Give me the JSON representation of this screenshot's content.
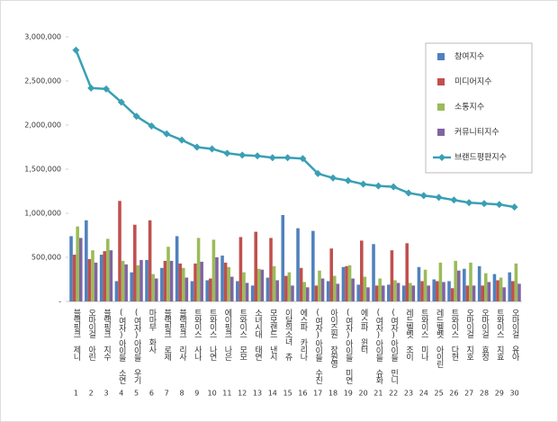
{
  "chart_data": {
    "type": "bar_line",
    "categories": [
      "블랙핑크 제니",
      "오마이걸 아린",
      "블랙핑크 지수",
      "(여자)아이들 소연",
      "(여자)아이들 우기",
      "마마무 화사",
      "블랙핑크 로제",
      "블랙핑크 리사",
      "트와이스 사나",
      "트와이스 나연",
      "에이핑크 나은",
      "트와이스 모모",
      "소녀시대 태연",
      "모모랜드 낸시",
      "이달의소녀 츄",
      "에스파 카리나",
      "(여자)아이들 수진",
      "아이즈원 장원영",
      "(여자)아이들 미연",
      "에스파 윈터",
      "(여자)아이들 슈화",
      "(여자)아이들 민니",
      "레드벨벳 조이",
      "트와이스 미나",
      "레드벨벳 아이린",
      "트와이스 다현",
      "오마이걸 지호",
      "오마이걸 효정",
      "트와이스 지효",
      "오마이걸 유아"
    ],
    "ranks": [
      1,
      2,
      3,
      4,
      5,
      6,
      7,
      8,
      9,
      10,
      11,
      12,
      13,
      14,
      15,
      16,
      17,
      18,
      19,
      20,
      21,
      22,
      23,
      24,
      25,
      26,
      27,
      28,
      29,
      30
    ],
    "series": [
      {
        "name": "참여지수",
        "color": "#4f81bd",
        "values": [
          740000,
          920000,
          530000,
          230000,
          330000,
          470000,
          380000,
          740000,
          230000,
          240000,
          520000,
          230000,
          180000,
          270000,
          980000,
          830000,
          800000,
          230000,
          390000,
          190000,
          650000,
          190000,
          180000,
          390000,
          250000,
          230000,
          370000,
          400000,
          310000,
          330000
        ]
      },
      {
        "name": "미디어지수",
        "color": "#c0504d",
        "values": [
          530000,
          480000,
          570000,
          1140000,
          870000,
          920000,
          460000,
          430000,
          430000,
          260000,
          440000,
          730000,
          790000,
          720000,
          290000,
          380000,
          180000,
          600000,
          400000,
          690000,
          180000,
          580000,
          660000,
          230000,
          230000,
          150000,
          180000,
          180000,
          240000,
          230000
        ]
      },
      {
        "name": "소통지수",
        "color": "#9bbb59",
        "values": [
          850000,
          580000,
          710000,
          460000,
          410000,
          310000,
          620000,
          380000,
          720000,
          700000,
          390000,
          330000,
          370000,
          400000,
          330000,
          220000,
          350000,
          290000,
          410000,
          280000,
          260000,
          240000,
          210000,
          360000,
          440000,
          460000,
          440000,
          320000,
          270000,
          430000
        ]
      },
      {
        "name": "커뮤니티지수",
        "color": "#8064a2",
        "values": [
          720000,
          440000,
          580000,
          420000,
          470000,
          260000,
          460000,
          270000,
          450000,
          500000,
          280000,
          210000,
          360000,
          240000,
          180000,
          160000,
          260000,
          200000,
          260000,
          160000,
          180000,
          210000,
          180000,
          180000,
          220000,
          350000,
          180000,
          220000,
          160000,
          200000
        ]
      },
      {
        "name": "브랜드평판지수",
        "color": "#3a9fb5",
        "type": "line",
        "values": [
          2850000,
          2420000,
          2410000,
          2260000,
          2100000,
          1990000,
          1900000,
          1830000,
          1750000,
          1730000,
          1680000,
          1660000,
          1650000,
          1630000,
          1630000,
          1620000,
          1450000,
          1400000,
          1370000,
          1330000,
          1310000,
          1300000,
          1230000,
          1200000,
          1180000,
          1150000,
          1120000,
          1110000,
          1100000,
          1070000
        ]
      }
    ],
    "ylim": [
      0,
      3000000
    ],
    "yticks": [
      {
        "value": 0,
        "label": "-"
      },
      {
        "value": 500000,
        "label": "500,000"
      },
      {
        "value": 1000000,
        "label": "1,000,000"
      },
      {
        "value": 1500000,
        "label": "1,500,000"
      },
      {
        "value": 2000000,
        "label": "2,000,000"
      },
      {
        "value": 2500000,
        "label": "2,500,000"
      },
      {
        "value": 3000000,
        "label": "3,000,000"
      }
    ],
    "legend": "upper right"
  }
}
